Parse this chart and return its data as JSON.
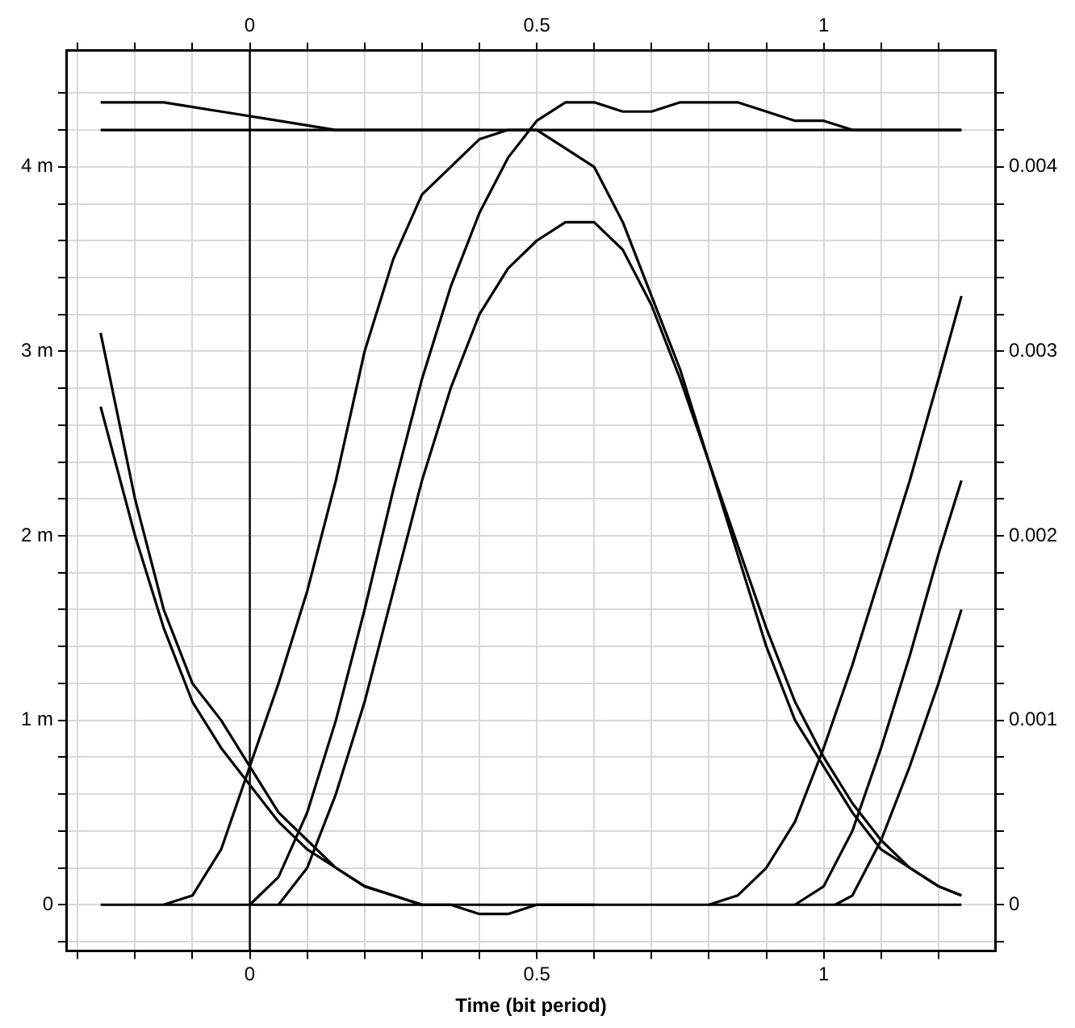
{
  "chart_data": {
    "type": "line",
    "xlabel": "Time (bit period)",
    "xlim": [
      -0.32,
      1.3
    ],
    "ylim": [
      -0.25,
      4.63
    ],
    "x2lim": [
      -0.32,
      1.3
    ],
    "y2lim": [
      -0.00025,
      0.00463
    ],
    "xticks": [
      {
        "value": -0.3,
        "label": null
      },
      {
        "value": -0.2,
        "label": null
      },
      {
        "value": -0.1,
        "label": null
      },
      0,
      {
        "value": 0.1,
        "label": null
      },
      {
        "value": 0.2,
        "label": null
      },
      {
        "value": 0.3,
        "label": null
      },
      {
        "value": 0.4,
        "label": null
      },
      0.5,
      {
        "value": 0.6,
        "label": null
      },
      {
        "value": 0.7,
        "label": null
      },
      {
        "value": 0.8,
        "label": null
      },
      {
        "value": 0.9,
        "label": null
      },
      1,
      {
        "value": 1.1,
        "label": null
      },
      {
        "value": 1.2,
        "label": null
      }
    ],
    "x2ticks": [
      {
        "value": -0.3,
        "label": null
      },
      {
        "value": -0.2,
        "label": null
      },
      {
        "value": -0.1,
        "label": null
      },
      0,
      {
        "value": 0.1,
        "label": null
      },
      {
        "value": 0.2,
        "label": null
      },
      {
        "value": 0.3,
        "label": null
      },
      {
        "value": 0.4,
        "label": null
      },
      0.5,
      {
        "value": 0.6,
        "label": null
      },
      {
        "value": 0.7,
        "label": null
      },
      {
        "value": 0.8,
        "label": null
      },
      {
        "value": 0.9,
        "label": null
      },
      1,
      {
        "value": 1.1,
        "label": null
      },
      {
        "value": 1.2,
        "label": null
      }
    ],
    "yticks": [
      {
        "value": -0.2,
        "label": null
      },
      0,
      {
        "value": 0.2,
        "label": null
      },
      {
        "value": 0.4,
        "label": null
      },
      {
        "value": 0.6,
        "label": null
      },
      {
        "value": 0.8,
        "label": null
      },
      {
        "value": 1,
        "label": "1 m"
      },
      {
        "value": 1.2,
        "label": null
      },
      {
        "value": 1.4,
        "label": null
      },
      {
        "value": 1.6,
        "label": null
      },
      {
        "value": 1.8,
        "label": null
      },
      {
        "value": 2,
        "label": "2 m"
      },
      {
        "value": 2.2,
        "label": null
      },
      {
        "value": 2.4,
        "label": null
      },
      {
        "value": 2.6,
        "label": null
      },
      {
        "value": 2.8,
        "label": null
      },
      {
        "value": 3,
        "label": "3 m"
      },
      {
        "value": 3.2,
        "label": null
      },
      {
        "value": 3.4,
        "label": null
      },
      {
        "value": 3.6,
        "label": null
      },
      {
        "value": 3.8,
        "label": null
      },
      {
        "value": 4,
        "label": "4 m"
      },
      {
        "value": 4.2,
        "label": null
      },
      {
        "value": 4.4,
        "label": null
      }
    ],
    "y2ticks": [
      {
        "value": -0.0002,
        "label": null
      },
      0,
      {
        "value": 0.0002,
        "label": null
      },
      {
        "value": 0.0004,
        "label": null
      },
      {
        "value": 0.0006,
        "label": null
      },
      {
        "value": 0.0008,
        "label": null
      },
      0.001,
      {
        "value": 0.0012,
        "label": null
      },
      {
        "value": 0.0014,
        "label": null
      },
      {
        "value": 0.0016,
        "label": null
      },
      {
        "value": 0.0018,
        "label": null
      },
      0.002,
      {
        "value": 0.0022,
        "label": null
      },
      {
        "value": 0.0024,
        "label": null
      },
      {
        "value": 0.0026,
        "label": null
      },
      {
        "value": 0.0028,
        "label": null
      },
      0.003,
      {
        "value": 0.0032,
        "label": null
      },
      {
        "value": 0.0034,
        "label": null
      },
      {
        "value": 0.0036,
        "label": null
      },
      {
        "value": 0.0038,
        "label": null
      },
      0.004,
      {
        "value": 0.0042,
        "label": null
      },
      {
        "value": 0.0044,
        "label": null
      }
    ],
    "grid": true,
    "legend": false,
    "marker": "none",
    "line_style": "solid",
    "ref_lines": [
      {
        "axis": "x",
        "value": 0,
        "color": "#000000"
      }
    ],
    "series": [
      {
        "color": "#000000",
        "x": [
          -0.15,
          -0.1,
          -0.05,
          0,
          0.05,
          0.1,
          0.15,
          0.2,
          0.25,
          0.3,
          0.35,
          0.4,
          0.45,
          0.5,
          0.55,
          0.6,
          0.65,
          0.7,
          0.75,
          0.8,
          0.85,
          0.9,
          0.95,
          1,
          1.05,
          1.1,
          1.15,
          1.2,
          1.24
        ],
        "values": [
          0,
          0.05,
          0.3,
          0.75,
          1.2,
          1.7,
          2.3,
          3,
          3.5,
          3.85,
          4,
          4.15,
          4.2,
          4.2,
          4.1,
          4,
          3.7,
          3.3,
          2.9,
          2.4,
          1.9,
          1.4,
          1,
          0.75,
          0.5,
          0.3,
          0.2,
          0.1,
          0.05
        ]
      },
      {
        "color": "#000000",
        "x": [
          -0.26,
          -0.2,
          -0.15,
          -0.1,
          -0.05,
          0,
          0.05,
          0.1,
          0.15,
          0.2,
          0.25,
          0.3,
          0.35,
          0.4,
          0.45,
          0.5,
          0.6
        ],
        "values": [
          3.1,
          2.2,
          1.6,
          1.2,
          1,
          0.75,
          0.5,
          0.35,
          0.2,
          0.1,
          0.05,
          0,
          0,
          -0.05,
          -0.05,
          0,
          0
        ]
      },
      {
        "color": "#000000",
        "x": [
          -0.26,
          -0.2,
          -0.15,
          -0.1,
          -0.05,
          0,
          0.05,
          0.1,
          0.15,
          0.2,
          0.25,
          0.3
        ],
        "values": [
          2.7,
          2,
          1.5,
          1.1,
          0.85,
          0.65,
          0.45,
          0.3,
          0.2,
          0.1,
          0.05,
          0
        ]
      },
      {
        "color": "#000000",
        "x": [
          0,
          0.05,
          0.1,
          0.15,
          0.2,
          0.25,
          0.3,
          0.35,
          0.4,
          0.45,
          0.5,
          0.55,
          0.6,
          0.65,
          0.7,
          0.75,
          0.8,
          0.85,
          0.9,
          0.95,
          1,
          1.05,
          1.1,
          1.24
        ],
        "values": [
          0,
          0.15,
          0.5,
          1,
          1.6,
          2.25,
          2.85,
          3.35,
          3.75,
          4.05,
          4.25,
          4.35,
          4.35,
          4.3,
          4.3,
          4.35,
          4.35,
          4.35,
          4.3,
          4.25,
          4.25,
          4.2,
          4.2,
          4.2
        ]
      },
      {
        "color": "#000000",
        "x": [
          0.05,
          0.1,
          0.15,
          0.2,
          0.25,
          0.3,
          0.35,
          0.4,
          0.45,
          0.5,
          0.55,
          0.6,
          0.65,
          0.7,
          0.75,
          0.8,
          0.85,
          0.9,
          0.95,
          1,
          1.05,
          1.1,
          1.15,
          1.2,
          1.24
        ],
        "values": [
          0,
          0.2,
          0.6,
          1.1,
          1.7,
          2.3,
          2.8,
          3.2,
          3.45,
          3.6,
          3.7,
          3.7,
          3.55,
          3.25,
          2.85,
          2.4,
          1.95,
          1.5,
          1.1,
          0.8,
          0.55,
          0.35,
          0.2,
          0.1,
          0.05
        ]
      },
      {
        "color": "#000000",
        "x": [
          -0.26,
          1.24
        ],
        "values": [
          4.2,
          4.2
        ]
      },
      {
        "color": "#000000",
        "x": [
          -0.26,
          -0.15,
          -0.05,
          0.05,
          0.15,
          0.4
        ],
        "values": [
          4.35,
          4.35,
          4.3,
          4.25,
          4.2,
          4.2
        ]
      },
      {
        "color": "#000000",
        "x": [
          0.8,
          0.85,
          0.9,
          0.95,
          1,
          1.05,
          1.1,
          1.15,
          1.2,
          1.24
        ],
        "values": [
          0,
          0.05,
          0.2,
          0.45,
          0.85,
          1.3,
          1.8,
          2.3,
          2.85,
          3.3
        ]
      },
      {
        "color": "#000000",
        "x": [
          0.95,
          1,
          1.05,
          1.1,
          1.15,
          1.2,
          1.24
        ],
        "values": [
          0,
          0.1,
          0.4,
          0.85,
          1.35,
          1.9,
          2.3
        ]
      },
      {
        "color": "#000000",
        "x": [
          1.02,
          1.05,
          1.1,
          1.15,
          1.2,
          1.24
        ],
        "values": [
          0,
          0.05,
          0.35,
          0.75,
          1.2,
          1.6
        ]
      },
      {
        "color": "#000000",
        "x": [
          -0.26,
          1.24
        ],
        "values": [
          0,
          0
        ]
      }
    ]
  }
}
